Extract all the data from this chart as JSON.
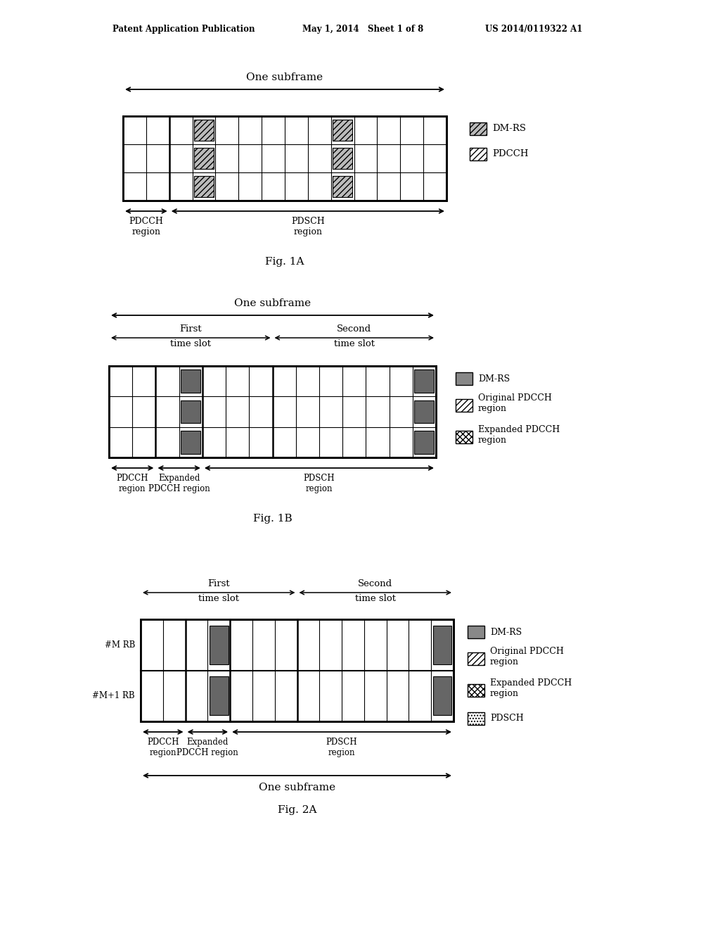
{
  "bg_color": "#ffffff",
  "header_text1": "Patent Application Publication",
  "header_text2": "May 1, 2014   Sheet 1 of 8",
  "header_text3": "US 2014/0119322 A1",
  "fig1a": {
    "figcap": "Fig. 1A",
    "title": "One subframe",
    "ncols": 14,
    "pdcch_cols": 2,
    "nrows": 3,
    "dmrs_col_slot1": 3,
    "dmrs_col_slot2": 9,
    "legend": [
      "DM-RS",
      "PDCCH"
    ],
    "bottom_labels": [
      "PDCCH\nregion",
      "PDSCH\nregion"
    ]
  },
  "fig1b": {
    "figcap": "Fig. 1B",
    "title": "One subframe",
    "ncols": 14,
    "pdcch_cols": 2,
    "exp_cols": 2,
    "nrows": 3,
    "dmrs_col_slot1": 3,
    "dmrs_col_slot2": 13,
    "legend": [
      "DM-RS",
      "Original PDCCH\nregion",
      "Expanded PDCCH\nregion"
    ],
    "bottom_labels": [
      "PDCCH\nregion",
      "Expanded\nPDCCH region",
      "PDSCH\nregion"
    ]
  },
  "fig2a": {
    "figcap": "Fig. 2A",
    "title": "One subframe",
    "ncols": 14,
    "pdcch_cols": 2,
    "exp_cols": 2,
    "nrows": 2,
    "dmrs_col_slot1": 3,
    "dmrs_col_slot2": 13,
    "row_labels": [
      "#M RB",
      "#M+1 RB"
    ],
    "legend": [
      "DM-RS",
      "Original PDCCH\nregion",
      "Expanded PDCCH\nregion",
      "PDSCH"
    ],
    "bottom_labels": [
      "PDCCH\nregion",
      "Expanded\nPDCCH region",
      "PDSCH\nregion"
    ]
  }
}
